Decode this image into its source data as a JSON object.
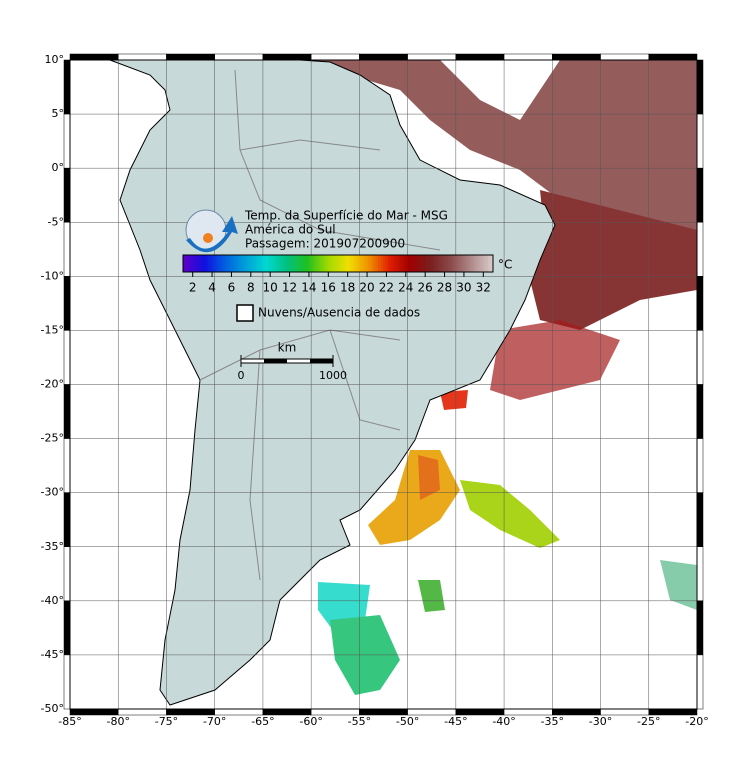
{
  "map": {
    "xlim": [
      -85,
      -20
    ],
    "ylim": [
      -50,
      10
    ],
    "grid": true,
    "xticks": [
      {
        "value": -85,
        "label": "-85°"
      },
      {
        "value": -80,
        "label": "-80°"
      },
      {
        "value": -75,
        "label": "-75°"
      },
      {
        "value": -70,
        "label": "-70°"
      },
      {
        "value": -65,
        "label": "-65°"
      },
      {
        "value": -60,
        "label": "-60°"
      },
      {
        "value": -55,
        "label": "-55°"
      },
      {
        "value": -50,
        "label": "-50°"
      },
      {
        "value": -45,
        "label": "-45°"
      },
      {
        "value": -40,
        "label": "-40°"
      },
      {
        "value": -35,
        "label": "-35°"
      },
      {
        "value": -30,
        "label": "-30°"
      },
      {
        "value": -25,
        "label": "-25°"
      },
      {
        "value": -20,
        "label": "-20°"
      }
    ],
    "yticks": [
      {
        "value": 10,
        "label": "10°"
      },
      {
        "value": 5,
        "label": "5°"
      },
      {
        "value": 0,
        "label": "0°"
      },
      {
        "value": -5,
        "label": "-5°"
      },
      {
        "value": -10,
        "label": "-10°"
      },
      {
        "value": -15,
        "label": "-15°"
      },
      {
        "value": -20,
        "label": "-20°"
      },
      {
        "value": -25,
        "label": "-25°"
      },
      {
        "value": -30,
        "label": "-30°"
      },
      {
        "value": -35,
        "label": "-35°"
      },
      {
        "value": -40,
        "label": "-40°"
      },
      {
        "value": -45,
        "label": "-45°"
      },
      {
        "value": -50,
        "label": "-50°"
      }
    ]
  },
  "legend": {
    "title_lines": [
      "Temp. da Superfície do Mar - MSG",
      "América do Sul",
      "Passagem: 201907200900"
    ],
    "colorbar": {
      "lim": [
        1,
        33
      ],
      "ticks": [
        2,
        4,
        6,
        8,
        10,
        12,
        14,
        16,
        18,
        20,
        22,
        24,
        26,
        28,
        30,
        32
      ],
      "unit": "°C",
      "colors": [
        "#5a00c8",
        "#1010e0",
        "#0060e0",
        "#00a0d8",
        "#00d8d0",
        "#00c080",
        "#20c020",
        "#a0d800",
        "#f0e000",
        "#f09000",
        "#e02000",
        "#a00000",
        "#7a1e1e",
        "#8a4a4a",
        "#b08a8a",
        "#d8c8c8"
      ]
    },
    "no_data": "Nuvens/Ausencia de dados",
    "scale": {
      "unit": "km",
      "ticks": [
        0,
        1000
      ]
    }
  }
}
